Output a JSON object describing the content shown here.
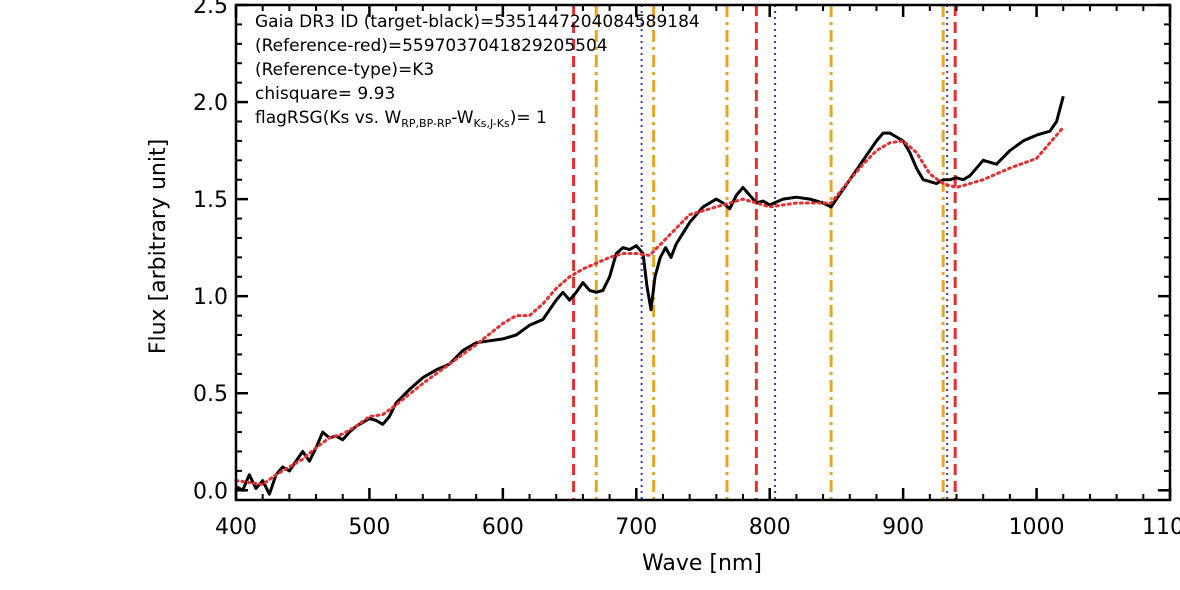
{
  "chart_data": {
    "type": "line",
    "xlabel": "Wave [nm]",
    "ylabel": "Flux [arbitrary unit]",
    "xlim": [
      400,
      1100
    ],
    "ylim": [
      -0.05,
      2.5
    ],
    "xticks": [
      400,
      500,
      600,
      700,
      800,
      900,
      1000,
      1100
    ],
    "xtick_labels": [
      "400",
      "500",
      "600",
      "700",
      "800",
      "900",
      "1000",
      "1100"
    ],
    "yticks": [
      0.0,
      0.5,
      1.0,
      1.5,
      2.0,
      2.5
    ],
    "ytick_labels": [
      "0.0",
      "0.5",
      "1.0",
      "1.5",
      "2.0",
      "2.5"
    ],
    "annotations": {
      "line1": "Gaia DR3 ID (target-black)=5351447204084589184",
      "line2": "(Reference-red)=5597037041829205504",
      "line3": "(Reference-type)=K3",
      "line4": "chisquare= 9.93",
      "line5_prefix": "flagRSG(Ks vs. W",
      "line5_sub1": "RP,BP-RP",
      "line5_mid": "-W",
      "line5_sub2": "Ks,J-Ks",
      "line5_suffix": ")= 1"
    },
    "vlines": {
      "red_dashed": [
        653,
        790,
        939
      ],
      "orange_dashdot": [
        670,
        713,
        768,
        846,
        930
      ],
      "blue_dotted": [
        704,
        804,
        933
      ]
    },
    "series": [
      {
        "color": "#000000",
        "style": "solid",
        "x": [
          400,
          405,
          410,
          415,
          420,
          425,
          430,
          435,
          440,
          445,
          450,
          455,
          460,
          465,
          470,
          475,
          480,
          485,
          490,
          495,
          500,
          505,
          510,
          515,
          520,
          530,
          540,
          550,
          560,
          570,
          580,
          590,
          600,
          610,
          620,
          630,
          640,
          645,
          650,
          655,
          660,
          665,
          670,
          675,
          680,
          685,
          690,
          695,
          700,
          705,
          708,
          711,
          714,
          718,
          722,
          726,
          730,
          740,
          750,
          760,
          765,
          770,
          775,
          780,
          785,
          790,
          795,
          800,
          810,
          820,
          830,
          840,
          846,
          850,
          860,
          870,
          880,
          885,
          890,
          895,
          900,
          905,
          910,
          915,
          920,
          925,
          930,
          935,
          940,
          945,
          950,
          960,
          970,
          980,
          990,
          1000,
          1010,
          1015,
          1020
        ],
        "y": [
          0.02,
          0.0,
          0.08,
          0.01,
          0.05,
          -0.02,
          0.08,
          0.12,
          0.1,
          0.15,
          0.2,
          0.15,
          0.22,
          0.3,
          0.27,
          0.28,
          0.26,
          0.3,
          0.33,
          0.35,
          0.37,
          0.36,
          0.34,
          0.38,
          0.45,
          0.52,
          0.58,
          0.62,
          0.65,
          0.72,
          0.76,
          0.77,
          0.78,
          0.8,
          0.85,
          0.88,
          0.98,
          1.02,
          0.98,
          1.02,
          1.07,
          1.03,
          1.02,
          1.03,
          1.1,
          1.22,
          1.25,
          1.24,
          1.26,
          1.22,
          1.05,
          0.93,
          1.1,
          1.2,
          1.25,
          1.2,
          1.27,
          1.38,
          1.46,
          1.5,
          1.48,
          1.45,
          1.52,
          1.56,
          1.52,
          1.48,
          1.49,
          1.47,
          1.5,
          1.51,
          1.5,
          1.48,
          1.46,
          1.5,
          1.6,
          1.7,
          1.8,
          1.84,
          1.84,
          1.82,
          1.8,
          1.74,
          1.66,
          1.6,
          1.59,
          1.58,
          1.6,
          1.6,
          1.61,
          1.6,
          1.62,
          1.7,
          1.68,
          1.75,
          1.8,
          1.83,
          1.85,
          1.9,
          2.03
        ]
      },
      {
        "color": "#e03030",
        "style": "dotted",
        "x": [
          400,
          410,
          420,
          430,
          440,
          450,
          460,
          470,
          480,
          490,
          500,
          510,
          520,
          540,
          560,
          580,
          600,
          610,
          620,
          630,
          640,
          650,
          660,
          670,
          680,
          690,
          700,
          710,
          720,
          730,
          740,
          760,
          770,
          780,
          790,
          800,
          820,
          830,
          846,
          860,
          870,
          880,
          890,
          900,
          910,
          920,
          930,
          940,
          960,
          980,
          1000,
          1020
        ],
        "y": [
          0.05,
          0.04,
          0.03,
          0.08,
          0.12,
          0.16,
          0.22,
          0.27,
          0.29,
          0.33,
          0.38,
          0.39,
          0.44,
          0.55,
          0.65,
          0.75,
          0.86,
          0.9,
          0.9,
          0.96,
          1.04,
          1.1,
          1.14,
          1.17,
          1.2,
          1.22,
          1.22,
          1.21,
          1.28,
          1.35,
          1.42,
          1.46,
          1.48,
          1.5,
          1.48,
          1.46,
          1.48,
          1.48,
          1.48,
          1.6,
          1.68,
          1.75,
          1.79,
          1.8,
          1.74,
          1.63,
          1.58,
          1.56,
          1.6,
          1.66,
          1.71,
          1.87
        ]
      }
    ]
  },
  "colors": {
    "red": "#e03030",
    "orange": "#e8a425",
    "blue": "#3a3aa8",
    "black": "#000000"
  }
}
